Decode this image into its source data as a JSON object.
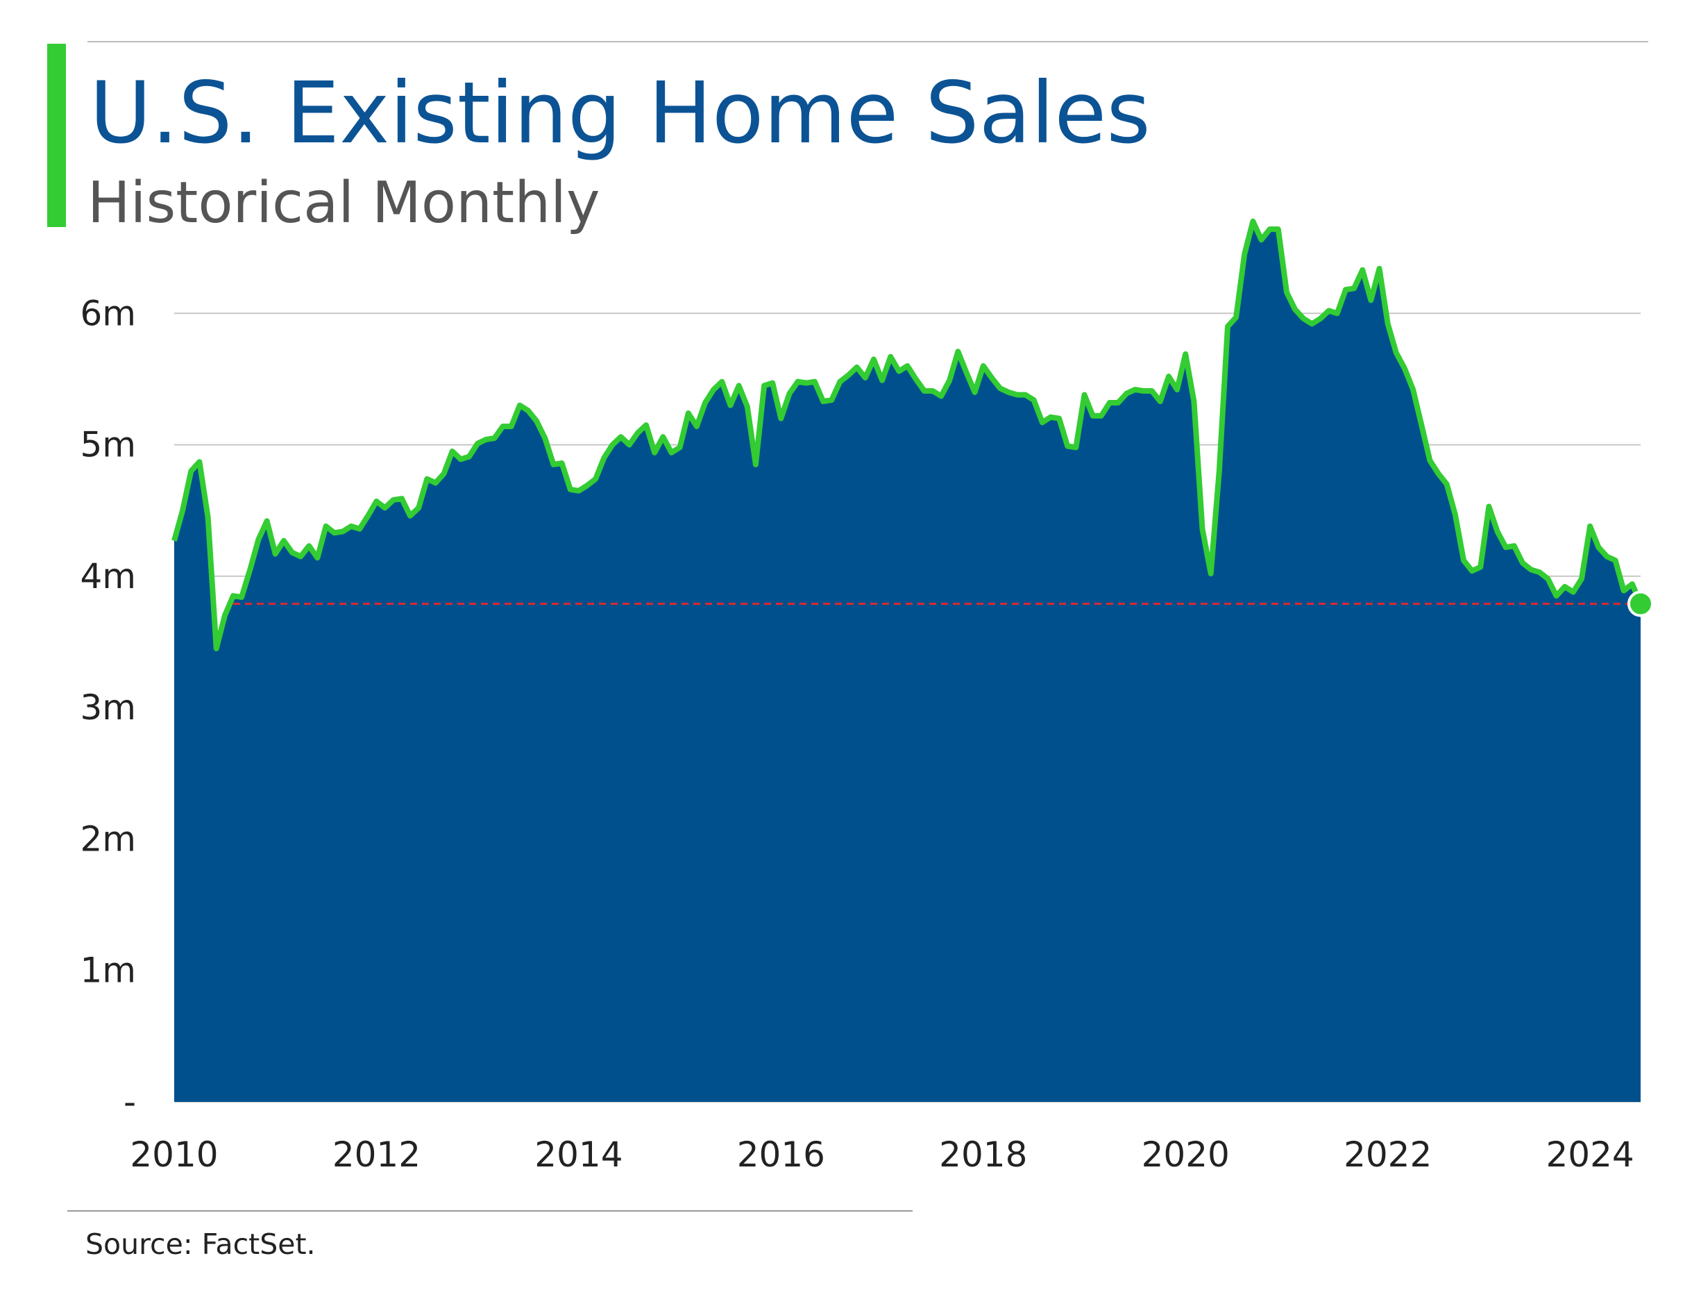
{
  "chart_data": {
    "type": "area",
    "title": "U.S. Existing Home Sales",
    "subtitle": "Historical Monthly",
    "source": "Source: FactSet.",
    "x": [
      "2010-01",
      "2010-02",
      "2010-03",
      "2010-04",
      "2010-05",
      "2010-06",
      "2010-07",
      "2010-08",
      "2010-09",
      "2010-10",
      "2010-11",
      "2010-12",
      "2011-01",
      "2011-02",
      "2011-03",
      "2011-04",
      "2011-05",
      "2011-06",
      "2011-07",
      "2011-08",
      "2011-09",
      "2011-10",
      "2011-11",
      "2011-12",
      "2012-01",
      "2012-02",
      "2012-03",
      "2012-04",
      "2012-05",
      "2012-06",
      "2012-07",
      "2012-08",
      "2012-09",
      "2012-10",
      "2012-11",
      "2012-12",
      "2013-01",
      "2013-02",
      "2013-03",
      "2013-04",
      "2013-05",
      "2013-06",
      "2013-07",
      "2013-08",
      "2013-09",
      "2013-10",
      "2013-11",
      "2013-12",
      "2014-01",
      "2014-02",
      "2014-03",
      "2014-04",
      "2014-05",
      "2014-06",
      "2014-07",
      "2014-08",
      "2014-09",
      "2014-10",
      "2014-11",
      "2014-12",
      "2015-01",
      "2015-02",
      "2015-03",
      "2015-04",
      "2015-05",
      "2015-06",
      "2015-07",
      "2015-08",
      "2015-09",
      "2015-10",
      "2015-11",
      "2015-12",
      "2016-01",
      "2016-02",
      "2016-03",
      "2016-04",
      "2016-05",
      "2016-06",
      "2016-07",
      "2016-08",
      "2016-09",
      "2016-10",
      "2016-11",
      "2016-12",
      "2017-01",
      "2017-02",
      "2017-03",
      "2017-04",
      "2017-05",
      "2017-06",
      "2017-07",
      "2017-08",
      "2017-09",
      "2017-10",
      "2017-11",
      "2017-12",
      "2018-01",
      "2018-02",
      "2018-03",
      "2018-04",
      "2018-05",
      "2018-06",
      "2018-07",
      "2018-08",
      "2018-09",
      "2018-10",
      "2018-11",
      "2018-12",
      "2019-01",
      "2019-02",
      "2019-03",
      "2019-04",
      "2019-05",
      "2019-06",
      "2019-07",
      "2019-08",
      "2019-09",
      "2019-10",
      "2019-11",
      "2019-12",
      "2020-01",
      "2020-02",
      "2020-03",
      "2020-04",
      "2020-05",
      "2020-06",
      "2020-07",
      "2020-08",
      "2020-09",
      "2020-10",
      "2020-11",
      "2020-12",
      "2021-01",
      "2021-02",
      "2021-03",
      "2021-04",
      "2021-05",
      "2021-06",
      "2021-07",
      "2021-08",
      "2021-09",
      "2021-10",
      "2021-11",
      "2021-12",
      "2022-01",
      "2022-02",
      "2022-03",
      "2022-04",
      "2022-05",
      "2022-06",
      "2022-07",
      "2022-08",
      "2022-09",
      "2022-10",
      "2022-11",
      "2022-12",
      "2023-01",
      "2023-02",
      "2023-03",
      "2023-04",
      "2023-05",
      "2023-06",
      "2023-07",
      "2023-08",
      "2023-09",
      "2023-10",
      "2023-11",
      "2023-12",
      "2024-01",
      "2024-02",
      "2024-03",
      "2024-04",
      "2024-05",
      "2024-06",
      "2024-07"
    ],
    "values": [
      4.27,
      4.5,
      4.8,
      4.87,
      4.45,
      3.45,
      3.7,
      3.85,
      3.84,
      4.05,
      4.28,
      4.42,
      4.17,
      4.27,
      4.18,
      4.15,
      4.23,
      4.14,
      4.38,
      4.33,
      4.34,
      4.38,
      4.36,
      4.46,
      4.57,
      4.52,
      4.58,
      4.59,
      4.46,
      4.52,
      4.74,
      4.71,
      4.78,
      4.95,
      4.89,
      4.91,
      5.01,
      5.04,
      5.05,
      5.14,
      5.14,
      5.3,
      5.26,
      5.18,
      5.05,
      4.85,
      4.86,
      4.66,
      4.65,
      4.69,
      4.74,
      4.9,
      5.0,
      5.06,
      5.0,
      5.09,
      5.15,
      4.94,
      5.06,
      4.94,
      4.98,
      5.24,
      5.14,
      5.32,
      5.42,
      5.48,
      5.3,
      5.45,
      5.29,
      4.85,
      5.45,
      5.47,
      5.2,
      5.39,
      5.48,
      5.47,
      5.48,
      5.33,
      5.34,
      5.48,
      5.53,
      5.59,
      5.51,
      5.65,
      5.49,
      5.67,
      5.56,
      5.6,
      5.5,
      5.41,
      5.41,
      5.37,
      5.49,
      5.71,
      5.55,
      5.4,
      5.6,
      5.51,
      5.43,
      5.4,
      5.38,
      5.38,
      5.34,
      5.17,
      5.21,
      5.2,
      4.99,
      4.98,
      5.38,
      5.22,
      5.22,
      5.32,
      5.32,
      5.39,
      5.42,
      5.41,
      5.41,
      5.33,
      5.52,
      5.42,
      5.69,
      5.33,
      4.36,
      4.02,
      4.8,
      5.9,
      5.97,
      6.45,
      6.7,
      6.56,
      6.64,
      6.64,
      6.16,
      6.03,
      5.96,
      5.92,
      5.96,
      6.02,
      6.0,
      6.18,
      6.19,
      6.33,
      6.1,
      6.34,
      5.92,
      5.7,
      5.58,
      5.42,
      5.15,
      4.88,
      4.78,
      4.7,
      4.47,
      4.12,
      4.04,
      4.07,
      4.53,
      4.34,
      4.22,
      4.23,
      4.1,
      4.05,
      4.03,
      3.98,
      3.85,
      3.92,
      3.88,
      3.98,
      4.38,
      4.22,
      4.15,
      4.12,
      3.89,
      3.94,
      3.79
    ],
    "fill_color": "#00508e",
    "line_color": "#33cc33",
    "reference_line": 3.79,
    "reference_color": "#e0282d",
    "xlim": [
      "2010-01",
      "2024-07"
    ],
    "xticks": [
      2010,
      2012,
      2014,
      2016,
      2018,
      2020,
      2022,
      2024
    ],
    "ylim": [
      0,
      7
    ],
    "yticks": [
      {
        "value": 0,
        "label": "-"
      },
      {
        "value": 1,
        "label": "1m"
      },
      {
        "value": 2,
        "label": "2m"
      },
      {
        "value": 3,
        "label": "3m"
      },
      {
        "value": 4,
        "label": "4m"
      },
      {
        "value": 5,
        "label": "5m"
      },
      {
        "value": 6,
        "label": "6m"
      }
    ],
    "grid": true
  }
}
